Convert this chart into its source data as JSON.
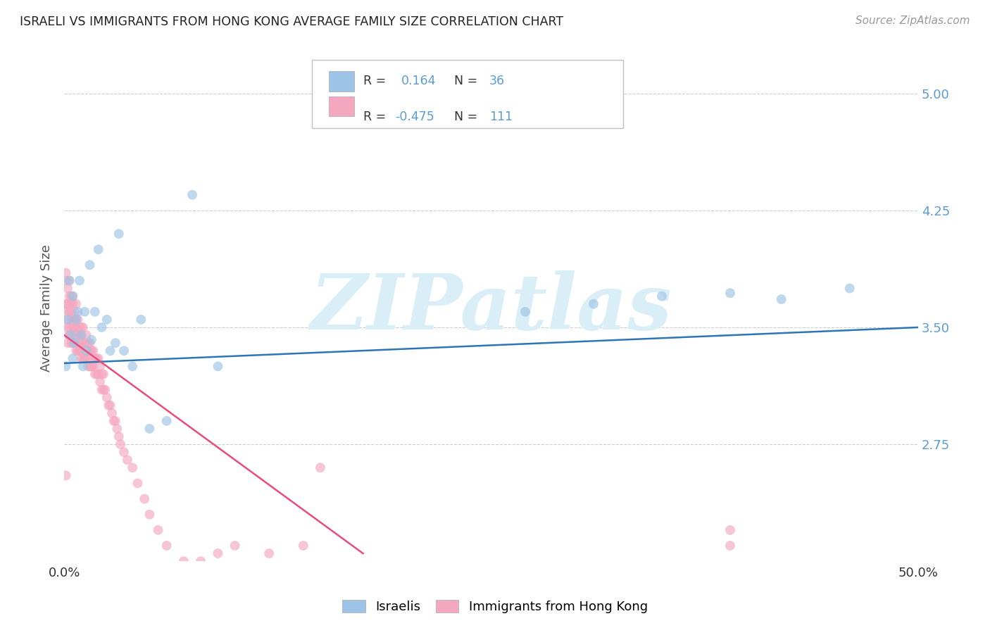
{
  "title": "ISRAELI VS IMMIGRANTS FROM HONG KONG AVERAGE FAMILY SIZE CORRELATION CHART",
  "source": "Source: ZipAtlas.com",
  "ylabel": "Average Family Size",
  "xlim": [
    0.0,
    0.5
  ],
  "ylim": [
    2.0,
    5.25
  ],
  "yticks": [
    2.75,
    3.5,
    4.25,
    5.0
  ],
  "xticks": [
    0.0,
    0.1,
    0.2,
    0.3,
    0.4,
    0.5
  ],
  "xticklabels": [
    "0.0%",
    "",
    "",
    "",
    "",
    "50.0%"
  ],
  "right_ytick_color": "#5b9bd5",
  "r_israeli": 0.164,
  "n_israeli": 36,
  "r_hk": -0.475,
  "n_hk": 111,
  "color_israeli": "#9dc3e6",
  "color_hk": "#f4a8c0",
  "line_color_israeli": "#2e75b6",
  "line_color_hk": "#e84c7d",
  "watermark": "ZIPatlas",
  "watermark_color": "#daeef8",
  "background_color": "#ffffff",
  "israeli_x": [
    0.001,
    0.002,
    0.003,
    0.004,
    0.005,
    0.005,
    0.006,
    0.007,
    0.008,
    0.009,
    0.01,
    0.011,
    0.012,
    0.013,
    0.015,
    0.016,
    0.018,
    0.02,
    0.022,
    0.025,
    0.027,
    0.03,
    0.032,
    0.035,
    0.04,
    0.045,
    0.05,
    0.06,
    0.075,
    0.09,
    0.27,
    0.31,
    0.35,
    0.39,
    0.42,
    0.46
  ],
  "israeli_y": [
    3.25,
    3.55,
    3.8,
    3.45,
    3.7,
    3.3,
    3.4,
    3.55,
    3.6,
    3.8,
    3.45,
    3.25,
    3.6,
    3.35,
    3.9,
    3.42,
    3.6,
    4.0,
    3.5,
    3.55,
    3.35,
    3.4,
    4.1,
    3.35,
    3.25,
    3.55,
    2.85,
    2.9,
    4.35,
    3.25,
    3.6,
    3.65,
    3.7,
    3.72,
    3.68,
    3.75
  ],
  "hk_x": [
    0.001,
    0.001,
    0.001,
    0.001,
    0.001,
    0.002,
    0.002,
    0.002,
    0.002,
    0.003,
    0.003,
    0.003,
    0.003,
    0.003,
    0.004,
    0.004,
    0.004,
    0.004,
    0.005,
    0.005,
    0.005,
    0.005,
    0.005,
    0.006,
    0.006,
    0.006,
    0.006,
    0.007,
    0.007,
    0.007,
    0.007,
    0.008,
    0.008,
    0.008,
    0.008,
    0.009,
    0.009,
    0.009,
    0.009,
    0.01,
    0.01,
    0.01,
    0.01,
    0.011,
    0.011,
    0.011,
    0.012,
    0.012,
    0.012,
    0.013,
    0.013,
    0.013,
    0.014,
    0.014,
    0.014,
    0.015,
    0.015,
    0.015,
    0.016,
    0.016,
    0.016,
    0.017,
    0.017,
    0.018,
    0.018,
    0.019,
    0.019,
    0.02,
    0.02,
    0.021,
    0.021,
    0.022,
    0.022,
    0.023,
    0.023,
    0.024,
    0.025,
    0.026,
    0.027,
    0.028,
    0.029,
    0.03,
    0.031,
    0.032,
    0.033,
    0.035,
    0.037,
    0.04,
    0.043,
    0.047,
    0.05,
    0.055,
    0.06,
    0.07,
    0.08,
    0.09,
    0.1,
    0.12,
    0.14,
    0.15,
    0.001,
    0.002,
    0.003,
    0.004,
    0.005,
    0.006,
    0.007,
    0.008,
    0.009,
    0.39,
    0.39
  ],
  "hk_y": [
    3.65,
    3.85,
    3.5,
    3.8,
    3.6,
    3.55,
    3.75,
    3.4,
    3.65,
    3.6,
    3.7,
    3.45,
    3.5,
    3.8,
    3.55,
    3.65,
    3.4,
    3.7,
    3.5,
    3.65,
    3.4,
    3.55,
    3.7,
    3.5,
    3.6,
    3.4,
    3.55,
    3.5,
    3.65,
    3.35,
    3.55,
    3.45,
    3.55,
    3.35,
    3.5,
    3.4,
    3.5,
    3.35,
    3.45,
    3.3,
    3.45,
    3.35,
    3.5,
    3.3,
    3.4,
    3.5,
    3.3,
    3.4,
    3.3,
    3.4,
    3.3,
    3.45,
    3.25,
    3.4,
    3.3,
    3.35,
    3.25,
    3.4,
    3.25,
    3.35,
    3.25,
    3.25,
    3.35,
    3.2,
    3.3,
    3.2,
    3.3,
    3.2,
    3.3,
    3.15,
    3.25,
    3.1,
    3.2,
    3.1,
    3.2,
    3.1,
    3.05,
    3.0,
    3.0,
    2.95,
    2.9,
    2.9,
    2.85,
    2.8,
    2.75,
    2.7,
    2.65,
    2.6,
    2.5,
    2.4,
    2.3,
    2.2,
    2.1,
    2.0,
    2.0,
    2.05,
    2.1,
    2.05,
    2.1,
    2.6,
    2.55,
    3.65,
    3.45,
    3.6,
    3.5,
    3.4,
    3.45,
    3.4,
    3.35,
    2.1,
    2.2
  ],
  "isr_line_x": [
    0.0,
    0.5
  ],
  "isr_line_y": [
    3.27,
    3.5
  ],
  "hk_line_x": [
    0.0,
    0.175
  ],
  "hk_line_y": [
    3.45,
    2.05
  ]
}
